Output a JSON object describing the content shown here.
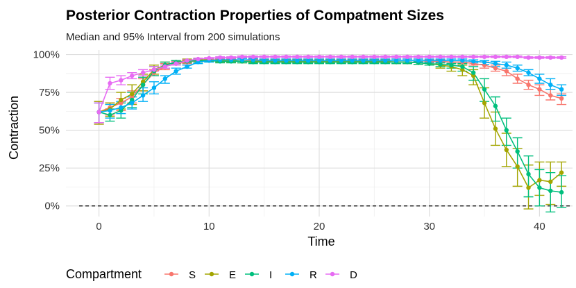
{
  "chart_data": {
    "type": "line",
    "title": "Posterior Contraction Properties of Compatment Sizes",
    "subtitle": "Median and 95% Interval from 200 simulations",
    "xlabel": "Time",
    "ylabel": "Contraction",
    "xlim": [
      -3,
      43
    ],
    "ylim": [
      -0.07,
      1.03
    ],
    "x_ticks": [
      0,
      10,
      20,
      30,
      40
    ],
    "x_tick_labels": [
      "0",
      "10",
      "20",
      "30",
      "40"
    ],
    "y_ticks": [
      0,
      0.25,
      0.5,
      0.75,
      1.0
    ],
    "y_tick_labels": [
      "0%",
      "25%",
      "50%",
      "75%",
      "100%"
    ],
    "reference_line": {
      "y": 0,
      "style": "dashed"
    },
    "legend": {
      "title": "Compartment",
      "position": "bottom"
    },
    "grid": true,
    "x": [
      0,
      1,
      2,
      3,
      4,
      5,
      6,
      7,
      8,
      9,
      10,
      11,
      12,
      13,
      14,
      15,
      16,
      17,
      18,
      19,
      20,
      21,
      22,
      23,
      24,
      25,
      26,
      27,
      28,
      29,
      30,
      31,
      32,
      33,
      34,
      35,
      36,
      37,
      38,
      39,
      40,
      41,
      42
    ],
    "series": [
      {
        "name": "S",
        "color": "#F8766D",
        "median": [
          0.62,
          0.65,
          0.68,
          0.72,
          0.8,
          0.88,
          0.92,
          0.94,
          0.95,
          0.96,
          0.965,
          0.965,
          0.965,
          0.965,
          0.96,
          0.96,
          0.96,
          0.96,
          0.96,
          0.96,
          0.96,
          0.96,
          0.96,
          0.96,
          0.96,
          0.96,
          0.96,
          0.96,
          0.96,
          0.96,
          0.955,
          0.955,
          0.95,
          0.95,
          0.94,
          0.93,
          0.91,
          0.89,
          0.84,
          0.8,
          0.77,
          0.73,
          0.71
        ],
        "lower": [
          0.54,
          0.6,
          0.63,
          0.68,
          0.76,
          0.86,
          0.9,
          0.93,
          0.94,
          0.95,
          0.955,
          0.955,
          0.955,
          0.955,
          0.95,
          0.95,
          0.95,
          0.95,
          0.95,
          0.95,
          0.95,
          0.95,
          0.95,
          0.95,
          0.95,
          0.95,
          0.95,
          0.95,
          0.95,
          0.95,
          0.945,
          0.945,
          0.94,
          0.94,
          0.93,
          0.91,
          0.89,
          0.86,
          0.81,
          0.77,
          0.73,
          0.7,
          0.67
        ],
        "upper": [
          0.69,
          0.68,
          0.71,
          0.76,
          0.84,
          0.9,
          0.94,
          0.955,
          0.96,
          0.97,
          0.975,
          0.975,
          0.975,
          0.975,
          0.97,
          0.97,
          0.97,
          0.97,
          0.97,
          0.97,
          0.97,
          0.97,
          0.97,
          0.97,
          0.97,
          0.97,
          0.97,
          0.97,
          0.97,
          0.97,
          0.965,
          0.965,
          0.96,
          0.96,
          0.955,
          0.95,
          0.93,
          0.91,
          0.87,
          0.83,
          0.8,
          0.77,
          0.74
        ]
      },
      {
        "name": "E",
        "color": "#A3A500",
        "median": [
          0.62,
          0.64,
          0.7,
          0.74,
          0.82,
          0.9,
          0.93,
          0.95,
          0.96,
          0.965,
          0.965,
          0.96,
          0.96,
          0.955,
          0.955,
          0.955,
          0.955,
          0.955,
          0.955,
          0.955,
          0.955,
          0.955,
          0.955,
          0.955,
          0.955,
          0.955,
          0.955,
          0.95,
          0.95,
          0.945,
          0.94,
          0.93,
          0.92,
          0.9,
          0.86,
          0.68,
          0.51,
          0.37,
          0.26,
          0.12,
          0.17,
          0.16,
          0.22
        ],
        "lower": [
          0.54,
          0.59,
          0.64,
          0.67,
          0.76,
          0.87,
          0.91,
          0.94,
          0.95,
          0.955,
          0.955,
          0.95,
          0.95,
          0.945,
          0.945,
          0.945,
          0.945,
          0.945,
          0.945,
          0.945,
          0.945,
          0.945,
          0.945,
          0.945,
          0.945,
          0.945,
          0.945,
          0.94,
          0.94,
          0.935,
          0.93,
          0.91,
          0.89,
          0.86,
          0.8,
          0.58,
          0.4,
          0.26,
          0.13,
          -0.02,
          0.07,
          0.01,
          0.13
        ],
        "upper": [
          0.69,
          0.68,
          0.75,
          0.8,
          0.87,
          0.93,
          0.95,
          0.96,
          0.97,
          0.975,
          0.975,
          0.97,
          0.97,
          0.965,
          0.965,
          0.965,
          0.965,
          0.965,
          0.965,
          0.965,
          0.965,
          0.965,
          0.965,
          0.965,
          0.965,
          0.965,
          0.965,
          0.96,
          0.96,
          0.955,
          0.95,
          0.945,
          0.94,
          0.93,
          0.9,
          0.78,
          0.62,
          0.48,
          0.38,
          0.27,
          0.29,
          0.29,
          0.29
        ]
      },
      {
        "name": "I",
        "color": "#00BF7D",
        "median": [
          0.62,
          0.6,
          0.63,
          0.7,
          0.8,
          0.89,
          0.93,
          0.95,
          0.955,
          0.96,
          0.96,
          0.955,
          0.955,
          0.955,
          0.95,
          0.95,
          0.95,
          0.95,
          0.95,
          0.95,
          0.95,
          0.95,
          0.95,
          0.95,
          0.95,
          0.95,
          0.95,
          0.95,
          0.95,
          0.945,
          0.94,
          0.935,
          0.93,
          0.92,
          0.88,
          0.77,
          0.66,
          0.5,
          0.36,
          0.21,
          0.12,
          0.1,
          0.09
        ],
        "lower": [
          0.55,
          0.56,
          0.58,
          0.65,
          0.74,
          0.86,
          0.91,
          0.94,
          0.945,
          0.95,
          0.95,
          0.945,
          0.945,
          0.945,
          0.94,
          0.94,
          0.94,
          0.94,
          0.94,
          0.94,
          0.94,
          0.94,
          0.94,
          0.94,
          0.94,
          0.94,
          0.94,
          0.94,
          0.94,
          0.935,
          0.93,
          0.92,
          0.91,
          0.89,
          0.83,
          0.69,
          0.56,
          0.4,
          0.25,
          0.06,
          0.0,
          -0.04,
          -0.01
        ],
        "upper": [
          0.68,
          0.64,
          0.68,
          0.75,
          0.85,
          0.92,
          0.95,
          0.96,
          0.965,
          0.97,
          0.97,
          0.965,
          0.965,
          0.965,
          0.96,
          0.96,
          0.96,
          0.96,
          0.96,
          0.96,
          0.96,
          0.96,
          0.96,
          0.96,
          0.96,
          0.96,
          0.96,
          0.96,
          0.96,
          0.955,
          0.95,
          0.945,
          0.94,
          0.94,
          0.92,
          0.84,
          0.72,
          0.58,
          0.45,
          0.33,
          0.24,
          0.22,
          0.2
        ]
      },
      {
        "name": "R",
        "color": "#00B0F6",
        "median": [
          0.62,
          0.63,
          0.65,
          0.68,
          0.73,
          0.78,
          0.84,
          0.89,
          0.92,
          0.95,
          0.96,
          0.965,
          0.965,
          0.965,
          0.965,
          0.96,
          0.96,
          0.96,
          0.96,
          0.96,
          0.96,
          0.96,
          0.96,
          0.96,
          0.96,
          0.96,
          0.96,
          0.96,
          0.96,
          0.96,
          0.96,
          0.96,
          0.96,
          0.96,
          0.955,
          0.95,
          0.94,
          0.93,
          0.91,
          0.88,
          0.84,
          0.8,
          0.77
        ],
        "lower": [
          0.55,
          0.58,
          0.61,
          0.64,
          0.69,
          0.74,
          0.81,
          0.87,
          0.91,
          0.94,
          0.95,
          0.955,
          0.955,
          0.955,
          0.955,
          0.95,
          0.95,
          0.95,
          0.95,
          0.95,
          0.95,
          0.95,
          0.95,
          0.95,
          0.95,
          0.95,
          0.95,
          0.95,
          0.95,
          0.95,
          0.95,
          0.95,
          0.95,
          0.95,
          0.945,
          0.935,
          0.92,
          0.91,
          0.89,
          0.86,
          0.81,
          0.77,
          0.73
        ],
        "upper": [
          0.68,
          0.67,
          0.69,
          0.72,
          0.78,
          0.82,
          0.86,
          0.91,
          0.93,
          0.96,
          0.97,
          0.975,
          0.975,
          0.975,
          0.975,
          0.97,
          0.97,
          0.97,
          0.97,
          0.97,
          0.97,
          0.97,
          0.97,
          0.97,
          0.97,
          0.97,
          0.97,
          0.97,
          0.97,
          0.97,
          0.97,
          0.97,
          0.97,
          0.97,
          0.965,
          0.96,
          0.955,
          0.95,
          0.93,
          0.9,
          0.87,
          0.84,
          0.8
        ]
      },
      {
        "name": "D",
        "color": "#E76BF3",
        "median": [
          0.62,
          0.81,
          0.83,
          0.86,
          0.88,
          0.9,
          0.92,
          0.94,
          0.96,
          0.97,
          0.975,
          0.98,
          0.98,
          0.985,
          0.985,
          0.985,
          0.985,
          0.985,
          0.985,
          0.985,
          0.985,
          0.985,
          0.985,
          0.985,
          0.985,
          0.985,
          0.985,
          0.985,
          0.985,
          0.985,
          0.985,
          0.985,
          0.985,
          0.985,
          0.985,
          0.985,
          0.985,
          0.985,
          0.985,
          0.98,
          0.98,
          0.98,
          0.98
        ],
        "lower": [
          0.55,
          0.77,
          0.8,
          0.84,
          0.86,
          0.89,
          0.91,
          0.93,
          0.955,
          0.965,
          0.97,
          0.975,
          0.975,
          0.98,
          0.98,
          0.98,
          0.98,
          0.98,
          0.98,
          0.98,
          0.98,
          0.98,
          0.98,
          0.98,
          0.98,
          0.98,
          0.98,
          0.98,
          0.98,
          0.98,
          0.98,
          0.98,
          0.98,
          0.98,
          0.98,
          0.98,
          0.98,
          0.98,
          0.98,
          0.975,
          0.975,
          0.975,
          0.975
        ],
        "upper": [
          0.68,
          0.85,
          0.86,
          0.88,
          0.9,
          0.92,
          0.93,
          0.95,
          0.965,
          0.975,
          0.98,
          0.985,
          0.985,
          0.99,
          0.99,
          0.99,
          0.99,
          0.99,
          0.99,
          0.99,
          0.99,
          0.99,
          0.99,
          0.99,
          0.99,
          0.99,
          0.99,
          0.99,
          0.99,
          0.99,
          0.99,
          0.99,
          0.99,
          0.99,
          0.99,
          0.99,
          0.99,
          0.99,
          0.99,
          0.985,
          0.985,
          0.985,
          0.985
        ]
      }
    ]
  }
}
